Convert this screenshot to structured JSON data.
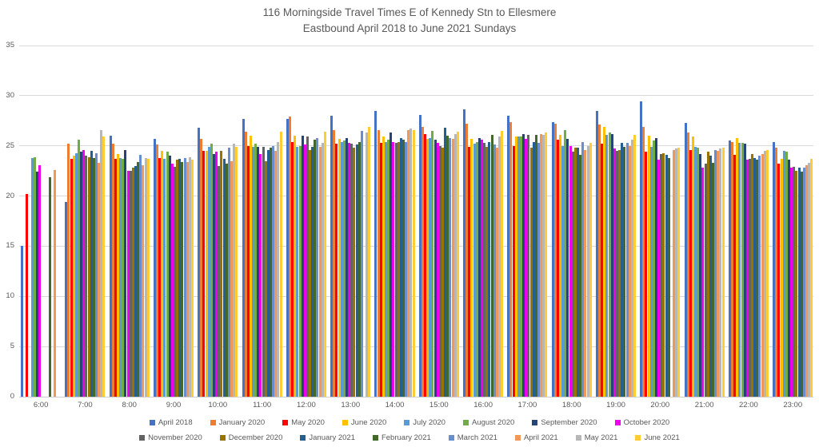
{
  "title": {
    "line1": "116 Morningside Travel Times E of Kennedy Stn to Ellesmere",
    "line2": "Eastbound April 2018 to June 2021 Sundays"
  },
  "axis": {
    "y_tick_labels": [
      "0",
      "5",
      "10",
      "15",
      "20",
      "25",
      "30",
      "35"
    ],
    "x_tick_labels": [
      "6:00",
      "7:00",
      "8:00",
      "9:00",
      "10:00",
      "11:00",
      "12:00",
      "13:00",
      "14:00",
      "15:00",
      "16:00",
      "17:00",
      "18:00",
      "19:00",
      "20:00",
      "21:00",
      "22:00",
      "23:00"
    ]
  },
  "style_colors": {
    "text": "#595959",
    "gridline": "#d9d9d9",
    "background": "#ffffff"
  },
  "chart_data": {
    "type": "bar",
    "title": "116 Morningside Travel Times E of Kennedy Stn to Ellesmere Eastbound April 2018 to June 2021 Sundays",
    "xlabel": "",
    "ylabel": "",
    "ylim": [
      0,
      35
    ],
    "yticks": [
      0,
      5,
      10,
      15,
      20,
      25,
      30,
      35
    ],
    "grid": true,
    "legend_position": "bottom",
    "categories": [
      "6:00",
      "7:00",
      "8:00",
      "9:00",
      "10:00",
      "11:00",
      "12:00",
      "13:00",
      "14:00",
      "15:00",
      "16:00",
      "17:00",
      "18:00",
      "19:00",
      "20:00",
      "21:00",
      "22:00",
      "23:00"
    ],
    "series": [
      {
        "name": "April 2018",
        "color": "#4472C4",
        "values": [
          15.0,
          19.4,
          26.0,
          25.7,
          26.8,
          27.7,
          27.7,
          28.0,
          28.5,
          28.1,
          28.6,
          28.0,
          27.4,
          28.5,
          29.4,
          27.3,
          25.5,
          25.4
        ]
      },
      {
        "name": "January 2020",
        "color": "#ED7D31",
        "values": [
          null,
          25.2,
          25.2,
          25.1,
          25.7,
          26.4,
          27.9,
          26.6,
          26.6,
          26.9,
          27.2,
          27.4,
          27.2,
          27.1,
          26.9,
          26.3,
          25.4,
          24.8
        ]
      },
      {
        "name": "May 2020",
        "color": "#FF0000",
        "values": [
          20.2,
          23.7,
          23.7,
          23.8,
          24.5,
          25.0,
          25.4,
          25.2,
          25.3,
          26.2,
          24.9,
          25.0,
          25.6,
          25.2,
          24.4,
          24.6,
          24.1,
          23.2
        ]
      },
      {
        "name": "June 2020",
        "color": "#FFC000",
        "values": [
          null,
          24.0,
          24.2,
          24.5,
          24.5,
          26.0,
          26.0,
          25.7,
          25.9,
          25.7,
          25.7,
          25.9,
          26.1,
          26.9,
          26.0,
          25.9,
          25.8,
          23.7
        ]
      },
      {
        "name": "July 2020",
        "color": "#5B9BD5",
        "values": [
          23.8,
          24.3,
          23.8,
          23.7,
          24.9,
          24.9,
          24.9,
          25.4,
          25.4,
          25.8,
          25.2,
          25.9,
          25.0,
          26.1,
          24.9,
          24.9,
          25.3,
          24.5
        ]
      },
      {
        "name": "August 2020",
        "color": "#70AD47",
        "values": [
          23.9,
          25.6,
          23.7,
          24.4,
          25.2,
          25.2,
          25.0,
          25.5,
          25.6,
          26.5,
          25.4,
          25.9,
          26.6,
          26.3,
          25.5,
          24.8,
          25.3,
          24.4
        ]
      },
      {
        "name": "September 2020",
        "color": "#264478",
        "values": [
          22.4,
          24.4,
          24.6,
          24.0,
          24.2,
          24.9,
          26.0,
          25.8,
          26.3,
          25.6,
          25.8,
          26.2,
          25.7,
          26.2,
          25.8,
          24.2,
          25.2,
          23.6
        ]
      },
      {
        "name": "October 2020",
        "color": "#EE00EE",
        "values": [
          23.1,
          24.6,
          22.5,
          23.2,
          24.4,
          24.2,
          25.1,
          25.3,
          25.4,
          25.3,
          25.6,
          25.7,
          25.0,
          24.7,
          23.6,
          22.8,
          23.6,
          22.8
        ]
      },
      {
        "name": "November 2020",
        "color": "#636363",
        "values": [
          null,
          24.0,
          22.5,
          22.9,
          23.0,
          24.9,
          25.9,
          25.2,
          25.3,
          25.0,
          25.3,
          26.1,
          24.4,
          24.5,
          24.2,
          23.2,
          23.7,
          22.9
        ]
      },
      {
        "name": "December 2020",
        "color": "#997300",
        "values": [
          null,
          23.9,
          22.8,
          23.6,
          24.5,
          23.5,
          24.6,
          24.8,
          25.4,
          24.8,
          24.9,
          24.8,
          24.8,
          24.6,
          24.3,
          24.4,
          24.2,
          22.5
        ]
      },
      {
        "name": "January 2021",
        "color": "#255E91",
        "values": [
          null,
          24.5,
          23.0,
          23.7,
          23.7,
          24.6,
          24.9,
          25.1,
          25.8,
          26.8,
          25.4,
          25.4,
          24.8,
          25.3,
          24.1,
          24.0,
          23.8,
          22.8
        ]
      },
      {
        "name": "February 2021",
        "color": "#43682B",
        "values": [
          21.9,
          23.8,
          23.4,
          23.4,
          23.2,
          24.8,
          25.6,
          25.4,
          25.6,
          26.0,
          26.1,
          26.1,
          24.1,
          24.9,
          23.8,
          23.3,
          23.6,
          22.4
        ]
      },
      {
        "name": "March 2021",
        "color": "#698ED0",
        "values": [
          null,
          24.3,
          24.1,
          23.8,
          24.8,
          25.0,
          25.8,
          26.5,
          25.4,
          25.8,
          25.1,
          25.3,
          25.4,
          25.3,
          null,
          24.6,
          24.0,
          22.8
        ]
      },
      {
        "name": "April 2021",
        "color": "#F1975A",
        "values": [
          22.6,
          23.3,
          23.1,
          23.4,
          23.5,
          24.5,
          24.9,
          null,
          26.6,
          25.7,
          24.8,
          26.2,
          24.6,
          25.0,
          24.6,
          24.5,
          24.2,
          23.1
        ]
      },
      {
        "name": "May 2021",
        "color": "#B7B7B7",
        "values": [
          null,
          26.6,
          23.8,
          23.9,
          25.2,
          25.4,
          25.3,
          26.3,
          26.7,
          26.2,
          25.9,
          26.1,
          25.0,
          25.6,
          24.7,
          24.7,
          24.5,
          23.3
        ]
      },
      {
        "name": "June 2021",
        "color": "#FFCD33",
        "values": [
          null,
          25.9,
          23.7,
          23.6,
          24.9,
          26.4,
          26.4,
          26.9,
          26.6,
          26.4,
          26.5,
          26.3,
          25.3,
          26.1,
          24.8,
          24.8,
          24.6,
          23.7
        ]
      }
    ]
  }
}
